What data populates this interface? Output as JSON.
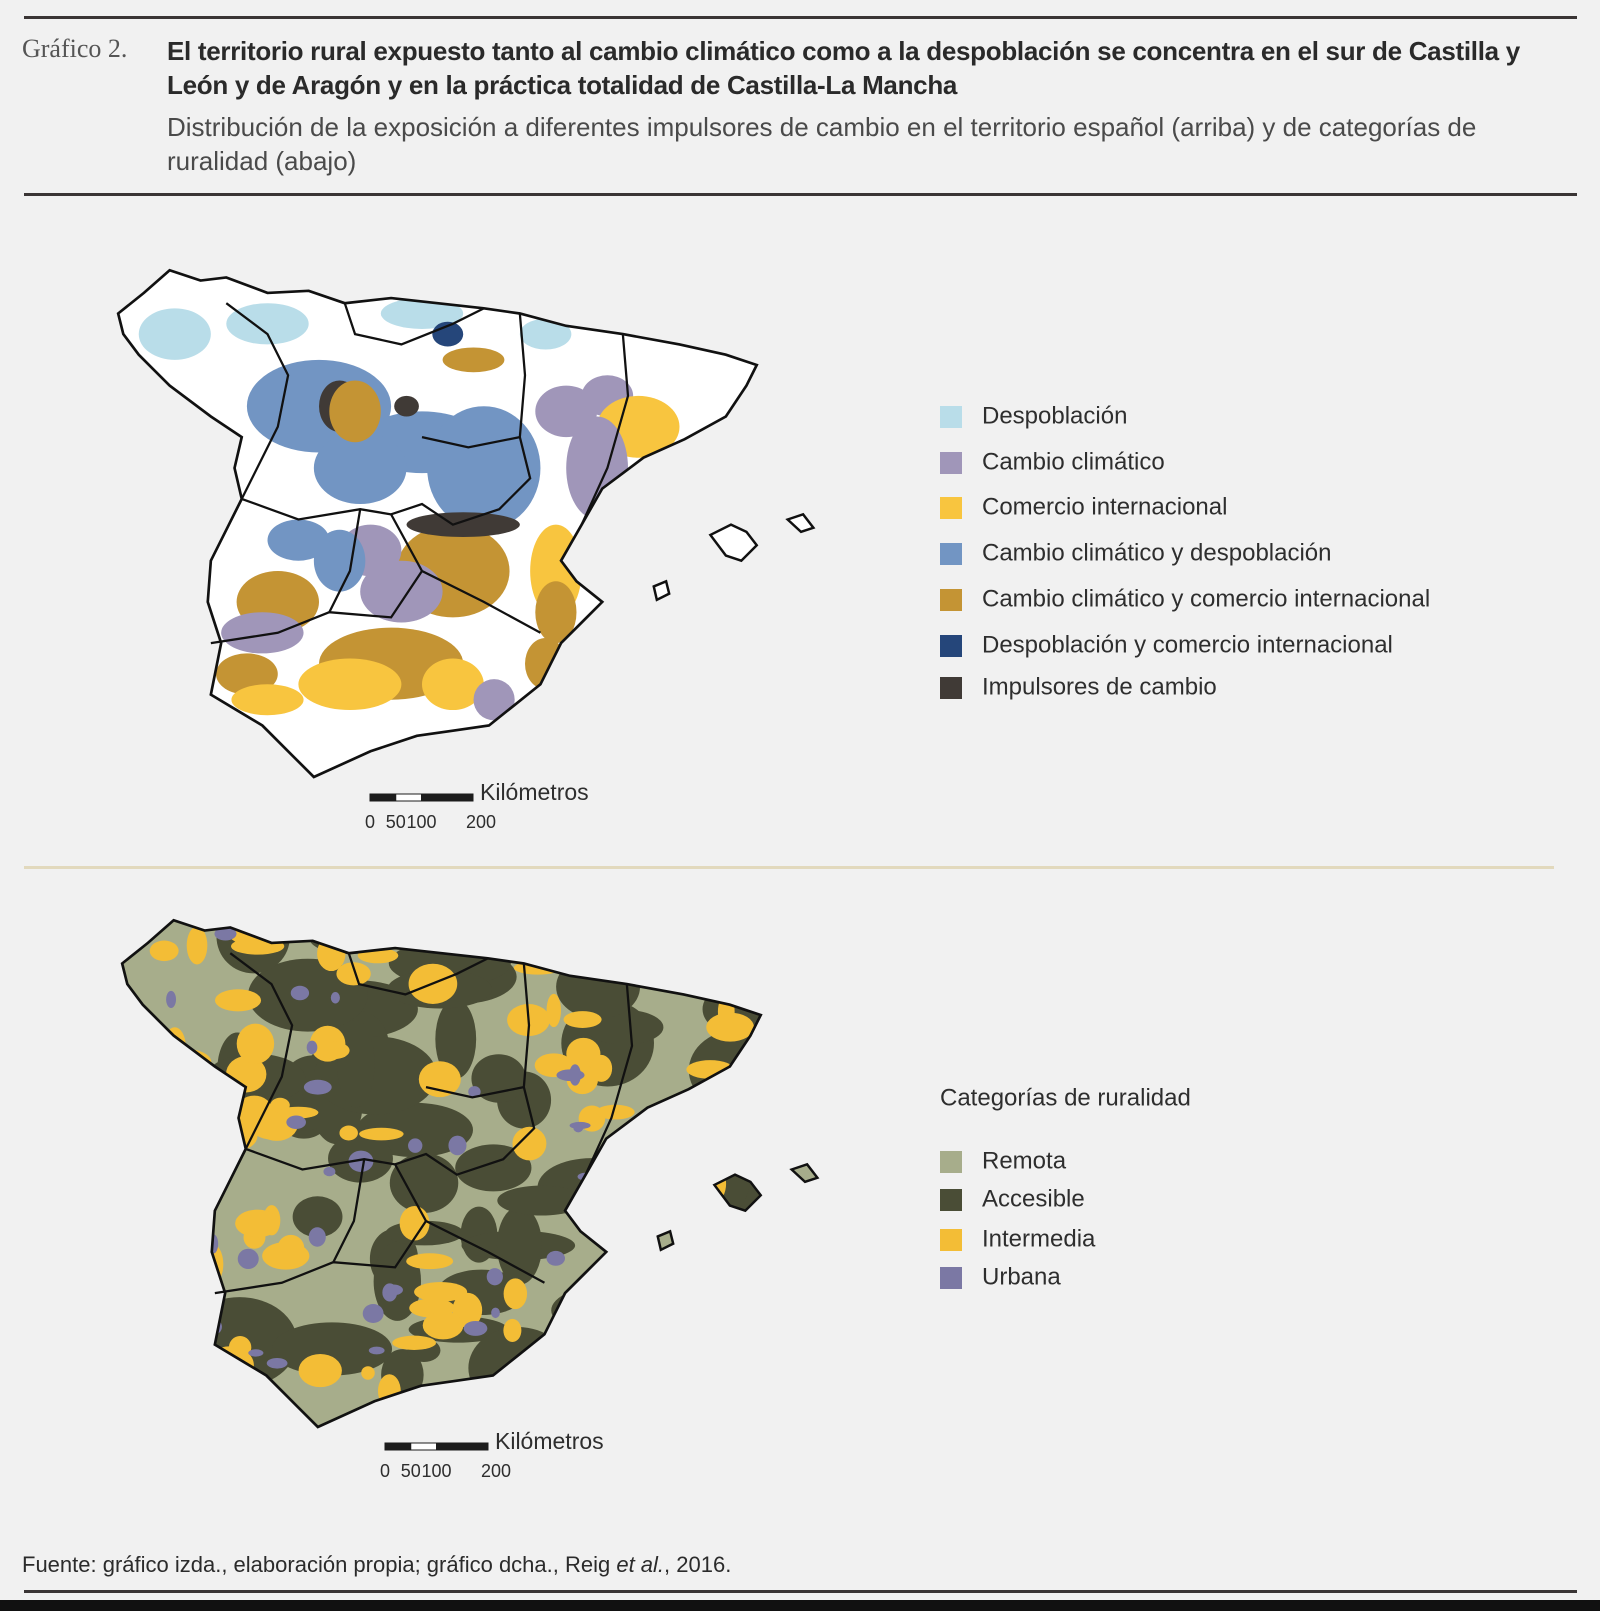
{
  "header": {
    "label": "Gráfico 2.",
    "title": "El territorio rural expuesto tanto al cambio climático como a la despoblación se concentra en el sur de Castilla y León y de Aragón y en la práctica totalidad de Castilla-La Mancha",
    "subtitle": "Distribución de la exposición a diferentes impulsores de cambio en el territorio español (arriba) y de categorías de ruralidad (abajo)"
  },
  "maps": [
    {
      "legend": [
        {
          "label": "Despoblación",
          "color": "#b9dde9"
        },
        {
          "label": "Cambio climático",
          "color": "#a096b9"
        },
        {
          "label": "Comercio internacional",
          "color": "#f8c53f"
        },
        {
          "label": "Cambio climático y despoblación",
          "color": "#7295c3"
        },
        {
          "label": "Cambio climático y comercio internacional",
          "color": "#c49434"
        },
        {
          "label": "Despoblación y comercio internacional",
          "color": "#25467a"
        },
        {
          "label": "Impulsores de cambio",
          "color": "#403a36"
        }
      ],
      "scale": {
        "unit": "Kilómetros",
        "ticks": [
          0,
          50,
          100,
          200
        ]
      }
    },
    {
      "legend_title": "Categorías de ruralidad",
      "legend": [
        {
          "label": "Remota",
          "color": "#a7ad8b"
        },
        {
          "label": "Accesible",
          "color": "#4a4d36"
        },
        {
          "label": "Intermedia",
          "color": "#f3bd36"
        },
        {
          "label": "Urbana",
          "color": "#7b78a4"
        }
      ],
      "scale": {
        "unit": "Kilómetros",
        "ticks": [
          0,
          50,
          100,
          200
        ]
      }
    }
  ],
  "source": {
    "parts": [
      "Fuente: gráfico izda., elaboración propia; gráfico dcha., Reig ",
      "et al.",
      ", 2016."
    ]
  }
}
